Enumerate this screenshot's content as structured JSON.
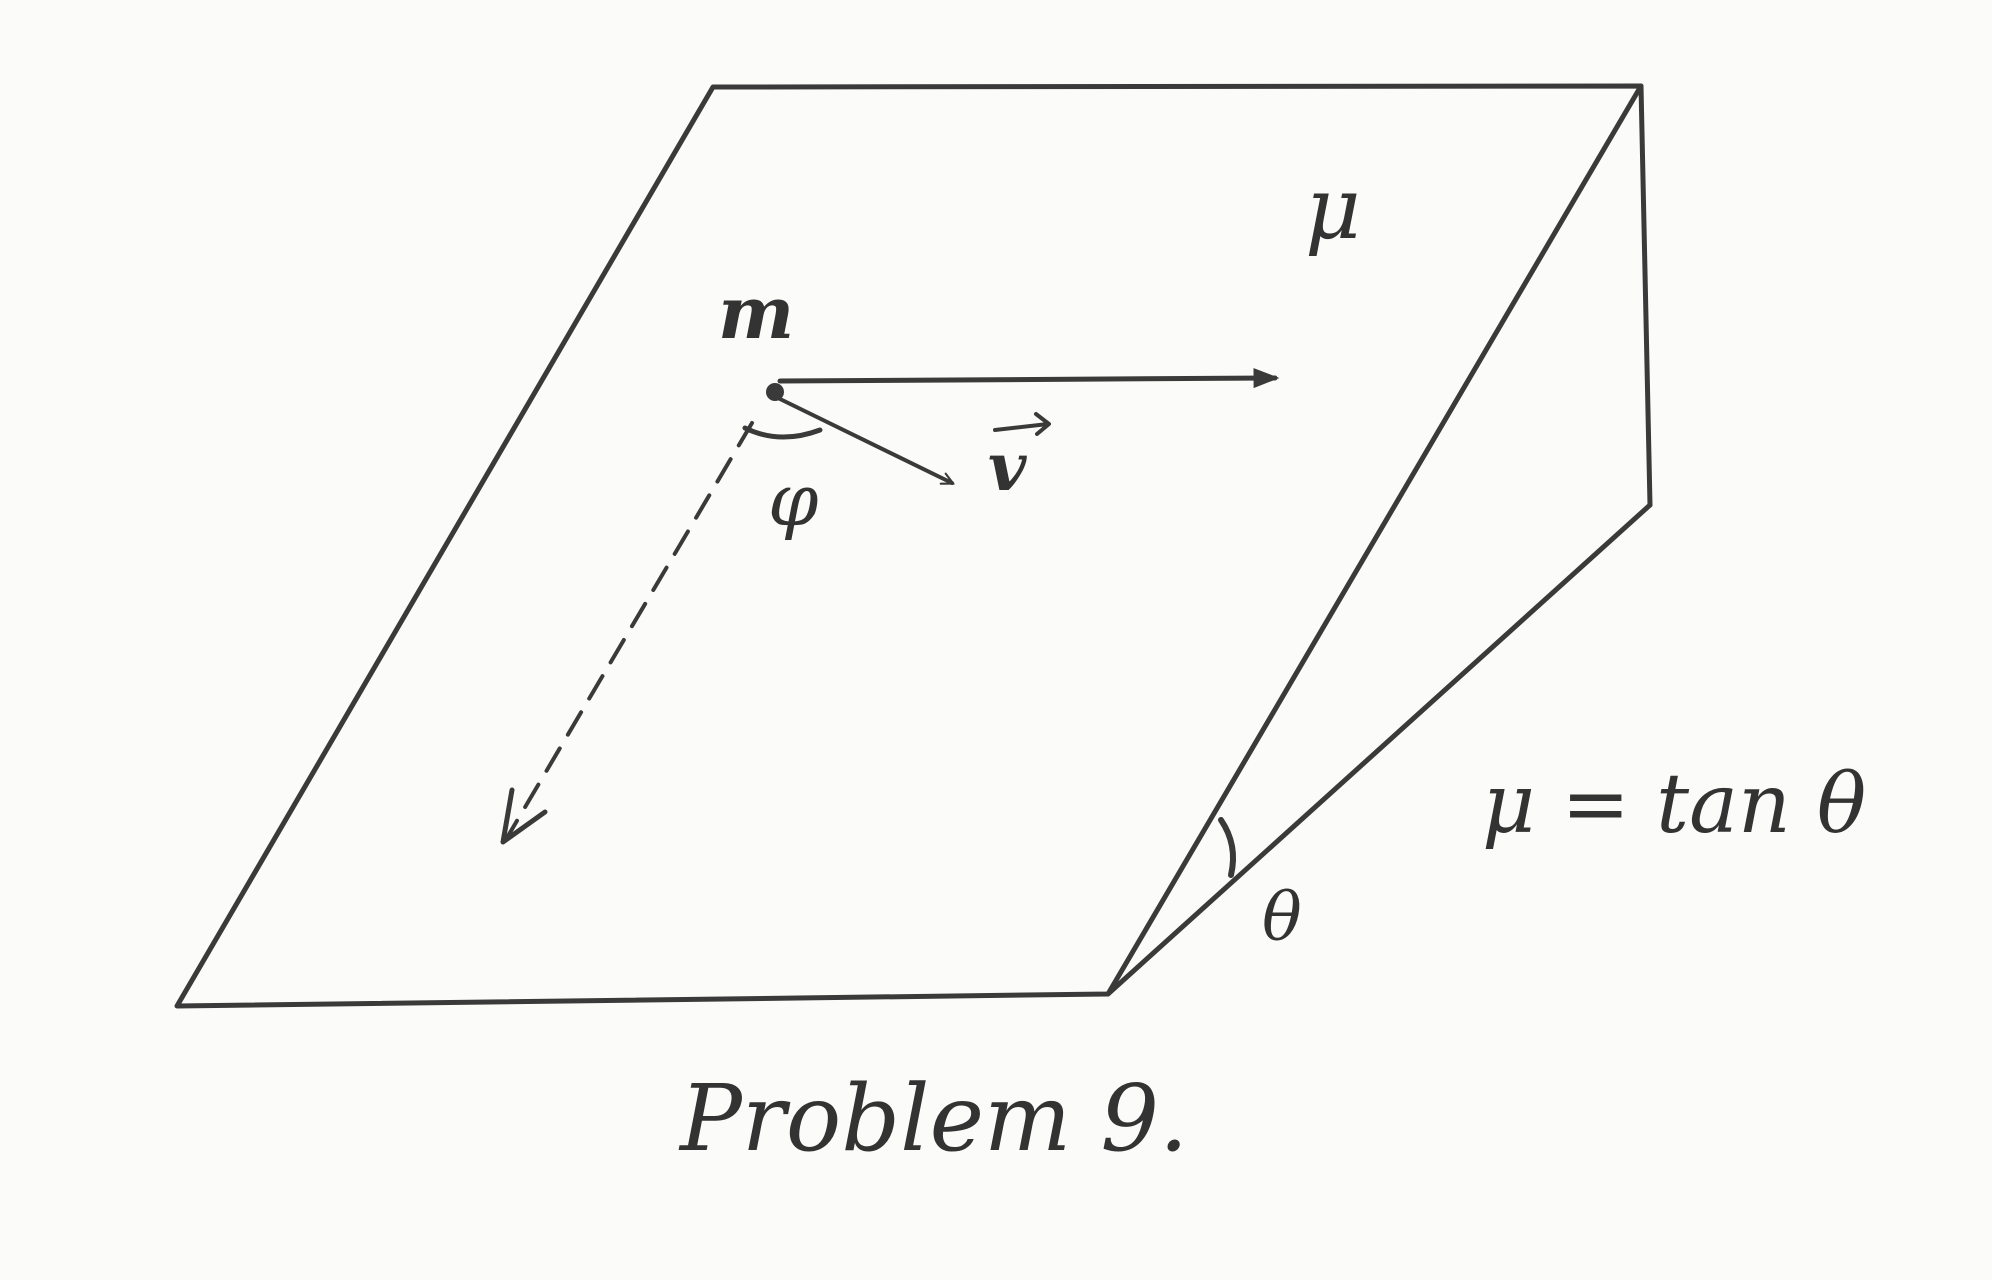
{
  "labels": {
    "mass": "m",
    "friction": "μ",
    "velocity": "v",
    "angle_phi": "φ",
    "angle_theta": "θ",
    "condition": "μ = tan θ",
    "caption": "Problem 9."
  },
  "colors": {
    "paper": "#fbfbf9",
    "ink": "#3a3a3a"
  }
}
